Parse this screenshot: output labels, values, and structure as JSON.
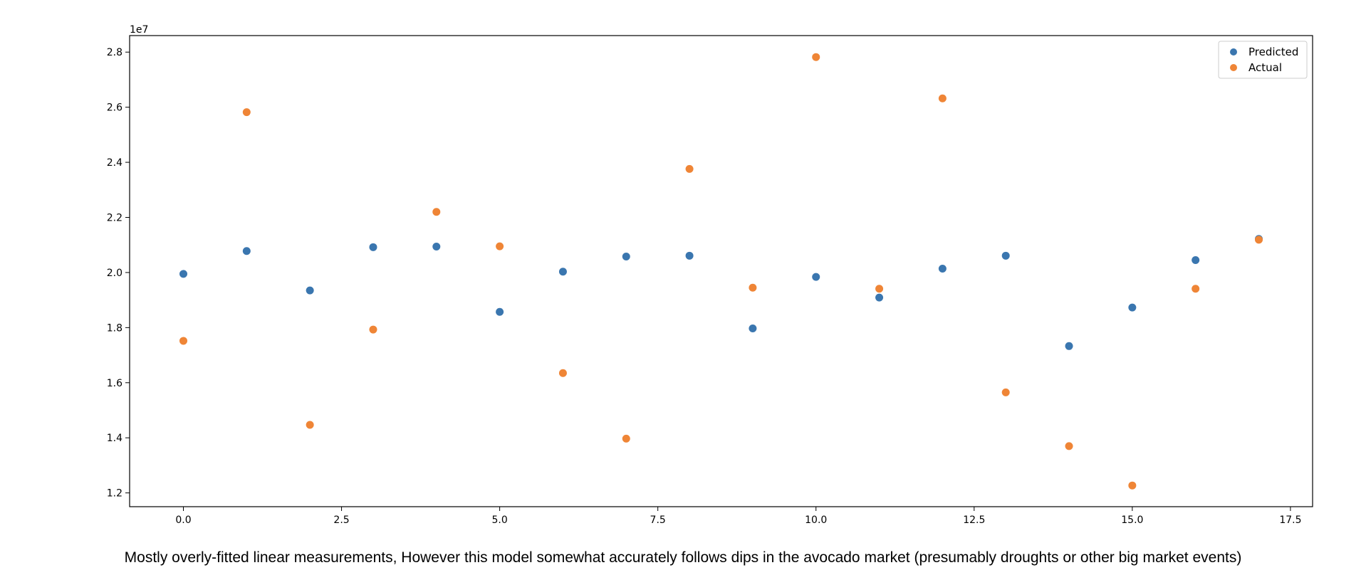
{
  "caption": "Mostly overly-fitted linear measurements, However this model somewhat accurately follows dips in the avocado market (presumably droughts or other big market events)",
  "chart_data": {
    "type": "scatter",
    "title": "",
    "xlabel": "",
    "ylabel": "",
    "y_offset_label": "1e7",
    "xlim": [
      -0.85,
      17.85
    ],
    "ylim": [
      11.5,
      28.6
    ],
    "x_ticks": [
      0.0,
      2.5,
      5.0,
      7.5,
      10.0,
      12.5,
      15.0,
      17.5
    ],
    "x_tick_labels": [
      "0.0",
      "2.5",
      "5.0",
      "7.5",
      "10.0",
      "12.5",
      "15.0",
      "17.5"
    ],
    "y_ticks": [
      1.2,
      1.4,
      1.6,
      1.8,
      2.0,
      2.2,
      2.4,
      2.6,
      2.8
    ],
    "y_tick_labels": [
      "1.2",
      "1.4",
      "1.6",
      "1.8",
      "2.0",
      "2.2",
      "2.4",
      "2.6",
      "2.8"
    ],
    "grid": false,
    "legend": "top-right",
    "series": [
      {
        "name": "Predicted",
        "color": "#3a76af",
        "x": [
          0,
          1,
          2,
          3,
          4,
          5,
          6,
          7,
          8,
          9,
          10,
          11,
          12,
          13,
          14,
          15,
          16,
          17
        ],
        "y": [
          19.95,
          20.78,
          19.35,
          20.92,
          20.94,
          18.57,
          20.03,
          20.58,
          20.61,
          17.97,
          19.84,
          19.09,
          20.14,
          20.61,
          17.33,
          18.73,
          20.45,
          21.22
        ]
      },
      {
        "name": "Actual",
        "color": "#ef8536",
        "x": [
          0,
          1,
          2,
          3,
          4,
          5,
          6,
          7,
          8,
          9,
          10,
          11,
          12,
          13,
          14,
          15,
          16,
          17
        ],
        "y": [
          17.52,
          25.82,
          14.47,
          17.93,
          22.2,
          20.95,
          16.35,
          13.97,
          23.76,
          19.45,
          27.82,
          19.41,
          26.32,
          15.65,
          13.7,
          12.27,
          19.41,
          21.19
        ]
      }
    ]
  }
}
